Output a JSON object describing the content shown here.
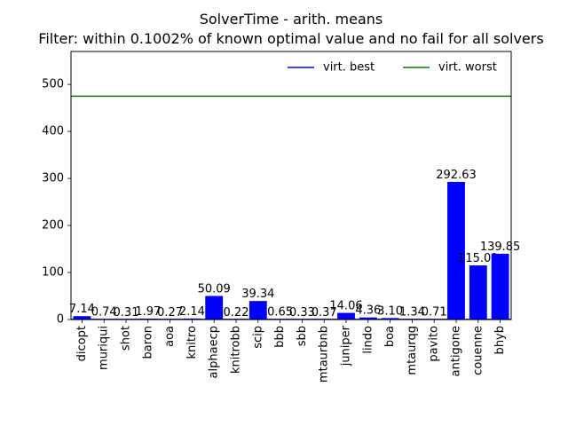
{
  "chart_data": {
    "type": "bar",
    "title": "SolverTime - arith. means",
    "subtitle": "Filter: within 0.1002% of known optimal value and no fail for all solvers",
    "xlabel": "",
    "ylabel": "",
    "ylim": [
      0,
      570
    ],
    "yticks": [
      0,
      100,
      200,
      300,
      400,
      500
    ],
    "grid": false,
    "legend_position": "top-right",
    "categories": [
      "dicopt",
      "muriqui",
      "shot",
      "baron",
      "aoa",
      "knitro",
      "alphaecp",
      "knitrobb",
      "scip",
      "bbb",
      "sbb",
      "mtaurbnb",
      "juniper",
      "lindo",
      "boa",
      "mtaurqg",
      "pavito",
      "antigone",
      "couenne",
      "bhyb"
    ],
    "values": [
      7.14,
      0.74,
      0.31,
      1.97,
      0.27,
      2.14,
      50.09,
      0.22,
      39.34,
      0.65,
      0.33,
      0.37,
      14.06,
      4.36,
      3.1,
      1.34,
      0.71,
      292.63,
      115.01,
      139.85
    ],
    "value_labels": [
      "7.14",
      "0.74",
      "0.31",
      "1.97",
      "0.27",
      "2.14",
      "50.09",
      "0.22",
      "39.34",
      "0.65",
      "0.33",
      "0.37",
      "14.06",
      "4.36",
      "3.10",
      "1.34",
      "0.71",
      "292.63",
      "115.01",
      "139.85"
    ],
    "bar_color": "#0000ff",
    "reference_lines": [
      {
        "name": "virt. best",
        "value": 0.2,
        "color": "#0000ff"
      },
      {
        "name": "virt. worst",
        "value": 475,
        "color": "#008000"
      }
    ]
  }
}
